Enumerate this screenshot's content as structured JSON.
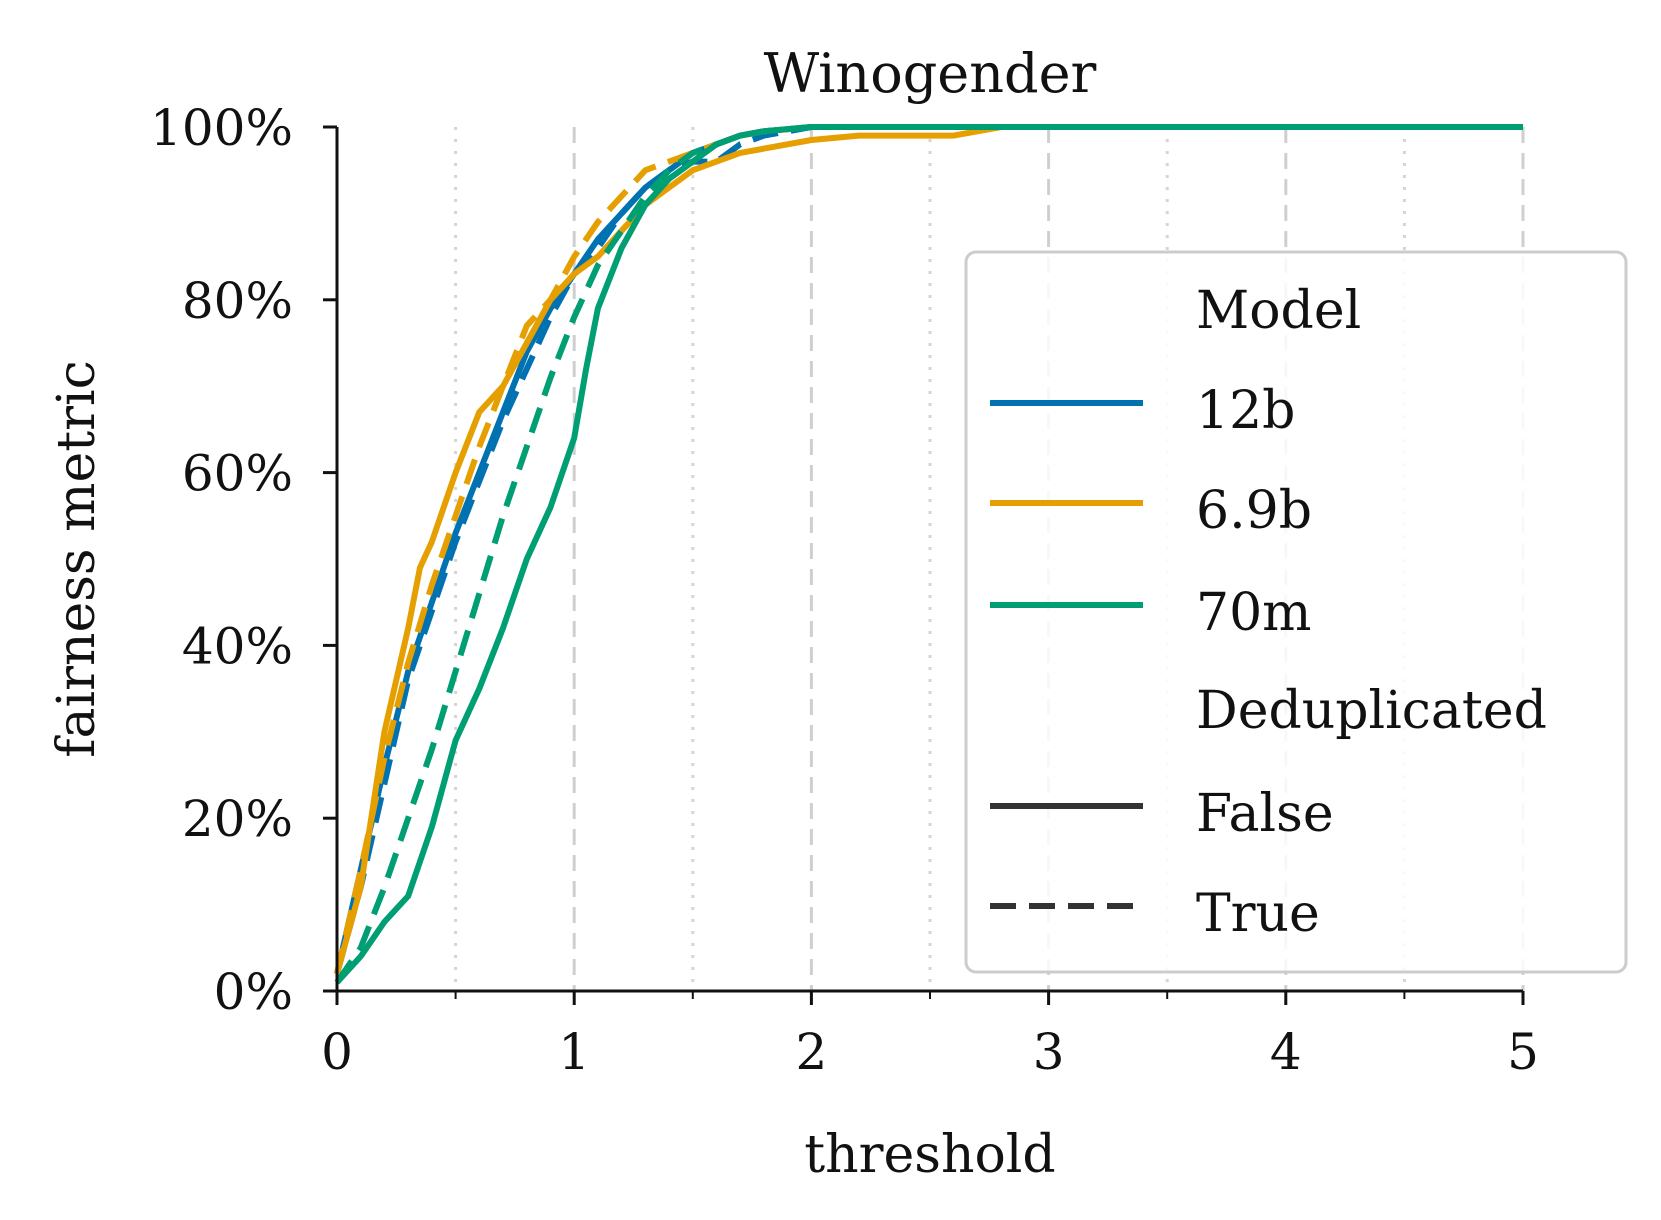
{
  "chart_data": {
    "type": "line",
    "title": "Winogender",
    "xlabel": "threshold",
    "ylabel": "fairness metric",
    "xlim": [
      0,
      5
    ],
    "ylim": [
      0,
      100
    ],
    "x_ticks": [
      "0",
      "1",
      "2",
      "3",
      "4",
      "5"
    ],
    "y_ticks": [
      "0%",
      "20%",
      "40%",
      "60%",
      "80%",
      "100%"
    ],
    "grid": "vertical dashed at integer thresholds, dotted at half thresholds",
    "legend": {
      "placement": "center-right",
      "model_title": "Model",
      "dedup_title": "Deduplicated",
      "models": [
        {
          "label": "12b",
          "color": "#0072B2"
        },
        {
          "label": "6.9b",
          "color": "#E69F00"
        },
        {
          "label": "70m",
          "color": "#009E73"
        }
      ],
      "styles": [
        {
          "label": "False",
          "dash": "solid"
        },
        {
          "label": "True",
          "dash": "dashed"
        }
      ],
      "style_color": "#333333"
    },
    "series": [
      {
        "name": "12b",
        "deduplicated": "False",
        "color": "#0072B2",
        "dashed": false,
        "x": [
          0,
          0.1,
          0.2,
          0.3,
          0.4,
          0.5,
          0.6,
          0.7,
          0.8,
          0.9,
          1.0,
          1.1,
          1.2,
          1.3,
          1.4,
          1.5,
          1.6,
          1.7,
          1.8,
          2.0,
          2.2,
          5.0
        ],
        "y": [
          2,
          14,
          26,
          37,
          45,
          53,
          60,
          67,
          74,
          79,
          83,
          87,
          90,
          93,
          95,
          97,
          98,
          99,
          99.5,
          100,
          100,
          100
        ]
      },
      {
        "name": "12b",
        "deduplicated": "True",
        "color": "#0072B2",
        "dashed": true,
        "x": [
          0,
          0.1,
          0.2,
          0.3,
          0.4,
          0.5,
          0.6,
          0.7,
          0.8,
          0.9,
          1.0,
          1.1,
          1.2,
          1.3,
          1.4,
          1.5,
          1.6,
          1.7,
          1.8,
          2.0,
          2.2,
          5.0
        ],
        "y": [
          2,
          12,
          24,
          36,
          44,
          52,
          59,
          66,
          72,
          78,
          83,
          86,
          90,
          93,
          95,
          96,
          96,
          98,
          99,
          100,
          100,
          100
        ]
      },
      {
        "name": "6.9b",
        "deduplicated": "False",
        "color": "#E69F00",
        "dashed": false,
        "x": [
          0,
          0.1,
          0.2,
          0.3,
          0.35,
          0.4,
          0.5,
          0.6,
          0.7,
          0.8,
          0.9,
          1.0,
          1.1,
          1.2,
          1.3,
          1.4,
          1.5,
          1.6,
          1.7,
          1.8,
          2.0,
          2.2,
          2.6,
          2.8,
          5.0
        ],
        "y": [
          2,
          12,
          30,
          42,
          49,
          52,
          60,
          67,
          70,
          75,
          80,
          83,
          85,
          88,
          91,
          93,
          95,
          96,
          97,
          97.5,
          98.5,
          99,
          99,
          100,
          100
        ]
      },
      {
        "name": "6.9b",
        "deduplicated": "True",
        "color": "#E69F00",
        "dashed": true,
        "x": [
          0,
          0.1,
          0.2,
          0.3,
          0.4,
          0.5,
          0.6,
          0.7,
          0.8,
          0.9,
          1.0,
          1.1,
          1.2,
          1.3,
          1.4,
          1.5,
          1.6,
          1.7,
          1.8,
          2.0,
          2.2,
          5.0
        ],
        "y": [
          2,
          14,
          27,
          38,
          47,
          55,
          63,
          70,
          77,
          80,
          85,
          89,
          92,
          95,
          96,
          97,
          98,
          99,
          99.5,
          100,
          100,
          100
        ]
      },
      {
        "name": "70m",
        "deduplicated": "False",
        "color": "#009E73",
        "dashed": false,
        "x": [
          0,
          0.1,
          0.2,
          0.3,
          0.4,
          0.5,
          0.6,
          0.7,
          0.8,
          0.9,
          1.0,
          1.05,
          1.1,
          1.2,
          1.3,
          1.4,
          1.5,
          1.6,
          1.7,
          1.8,
          2.0,
          2.2,
          5.0
        ],
        "y": [
          1,
          4,
          8,
          11,
          19,
          29,
          35,
          42,
          50,
          56,
          64,
          72,
          79,
          86,
          91,
          94,
          96,
          98,
          99,
          99.5,
          100,
          100,
          100
        ]
      },
      {
        "name": "70m",
        "deduplicated": "True",
        "color": "#009E73",
        "dashed": true,
        "x": [
          0,
          0.1,
          0.2,
          0.3,
          0.4,
          0.5,
          0.6,
          0.7,
          0.8,
          0.9,
          1.0,
          1.1,
          1.2,
          1.3,
          1.4,
          1.5,
          1.6,
          1.7,
          1.8,
          2.0,
          2.2,
          5.0
        ],
        "y": [
          1,
          5,
          12,
          20,
          28,
          37,
          46,
          55,
          63,
          71,
          78,
          84,
          88,
          92,
          95,
          97,
          98,
          99,
          99.5,
          100,
          100,
          100
        ]
      }
    ]
  }
}
